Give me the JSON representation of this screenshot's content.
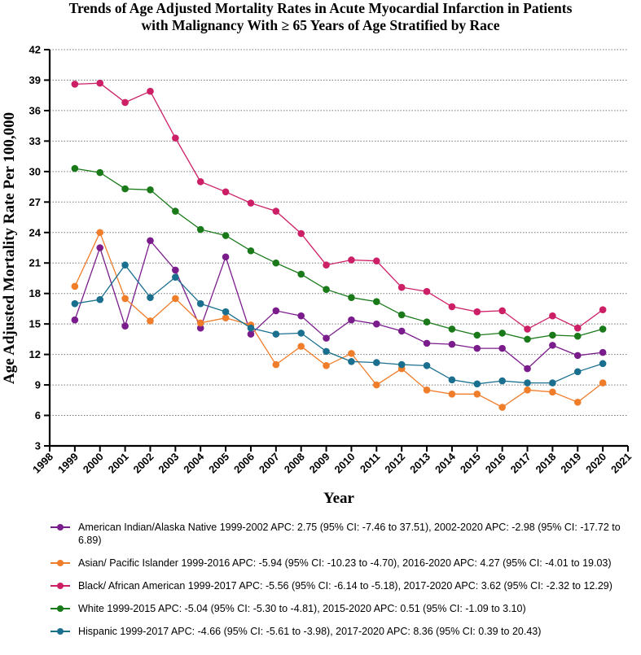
{
  "chart_data": {
    "type": "line",
    "title_line1": "Trends of Age Adjusted Mortality Rates in Acute Myocardial Infarction in Patients",
    "title_line2": "with Malignancy With ≥ 65 Years of Age Stratified by Race",
    "xlabel": "Year",
    "ylabel": "Age Adjusted Mortality Rate Per 100,000",
    "xlim": [
      1998,
      2021
    ],
    "ylim": [
      3,
      42
    ],
    "x_ticks": [
      "1998",
      "1999",
      "2000",
      "2001",
      "2002",
      "2003",
      "2004",
      "2005",
      "2006",
      "2007",
      "2008",
      "2009",
      "2010",
      "2011",
      "2012",
      "2013",
      "2014",
      "2015",
      "2016",
      "2017",
      "2018",
      "2019",
      "2020",
      "2021"
    ],
    "y_ticks": [
      "3",
      "6",
      "9",
      "12",
      "15",
      "18",
      "21",
      "24",
      "27",
      "30",
      "33",
      "36",
      "39",
      "42"
    ],
    "x": [
      1999,
      2000,
      2001,
      2002,
      2003,
      2004,
      2005,
      2006,
      2007,
      2008,
      2009,
      2010,
      2011,
      2012,
      2013,
      2014,
      2015,
      2016,
      2017,
      2018,
      2019,
      2020
    ],
    "grid": "horizontal dotted",
    "legend_position": "bottom",
    "series": [
      {
        "name": "American Indian/Alaska Native",
        "color": "#7b1c8c",
        "values": [
          15.4,
          22.5,
          14.8,
          23.2,
          20.3,
          14.6,
          21.6,
          14.0,
          16.3,
          15.8,
          13.6,
          15.4,
          15.0,
          14.3,
          13.1,
          13.0,
          12.6,
          12.6,
          10.6,
          12.9,
          11.9,
          12.2
        ],
        "legend": "American Indian/Alaska Native 1999-2002 APC: 2.75 (95% CI: -7.46 to 37.51), 2002-2020 APC: -2.98 (95% CI: -17.72 to 6.89)"
      },
      {
        "name": "Asian/ Pacific Islander",
        "color": "#f07d2a",
        "values": [
          18.7,
          24.0,
          17.5,
          15.3,
          17.5,
          15.1,
          15.6,
          14.9,
          11.0,
          12.8,
          10.9,
          12.1,
          9.0,
          10.6,
          8.5,
          8.1,
          8.1,
          6.8,
          8.5,
          8.3,
          7.3,
          9.2
        ],
        "legend": "Asian/ Pacific Islander 1999-2016 APC: -5.94 (95% CI: -10.23 to -4.70), 2016-2020 APC: 4.27 (95% CI: -4.01 to 19.03)"
      },
      {
        "name": "Black/ African American",
        "color": "#cc1f66",
        "values": [
          38.6,
          38.7,
          36.8,
          37.9,
          33.3,
          29.0,
          28.0,
          26.9,
          26.1,
          23.9,
          20.8,
          21.3,
          21.2,
          18.6,
          18.2,
          16.7,
          16.2,
          16.3,
          14.5,
          15.8,
          14.6,
          16.4
        ],
        "legend": "Black/ African American 1999-2017 APC: -5.56 (95% CI: -6.14 to -5.18), 2017-2020 APC: 3.62 (95% CI: -2.32 to 12.29)"
      },
      {
        "name": "White",
        "color": "#1a7a1a",
        "values": [
          30.3,
          29.9,
          28.3,
          28.2,
          26.1,
          24.3,
          23.7,
          22.2,
          21.0,
          19.9,
          18.4,
          17.6,
          17.2,
          15.9,
          15.2,
          14.5,
          13.9,
          14.1,
          13.5,
          13.9,
          13.8,
          14.5
        ],
        "legend": "White 1999-2015 APC: -5.04 (95% CI: -5.30 to -4.81), 2015-2020 APC: 0.51 (95% CI: -1.09 to 3.10)"
      },
      {
        "name": "Hispanic",
        "color": "#1a6f8f",
        "values": [
          17.0,
          17.4,
          20.8,
          17.6,
          19.6,
          17.0,
          16.2,
          14.6,
          14.0,
          14.1,
          12.3,
          11.3,
          11.2,
          11.0,
          10.9,
          9.5,
          9.1,
          9.4,
          9.2,
          9.2,
          10.3,
          11.1
        ],
        "legend": "Hispanic 1999-2017 APC: -4.66 (95% CI: -5.61 to -3.98), 2017-2020 APC: 8.36 (95% CI: 0.39 to 20.43)"
      }
    ]
  }
}
